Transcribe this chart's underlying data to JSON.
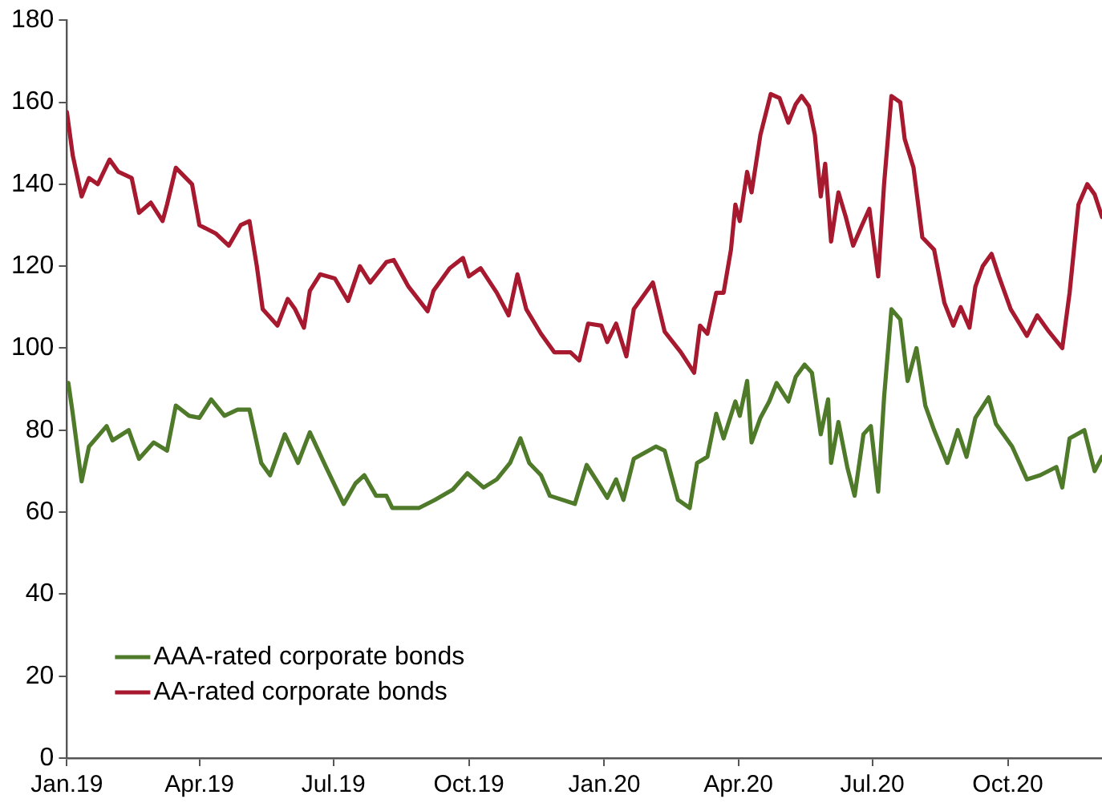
{
  "chart_data": {
    "type": "line",
    "xlim": [
      "2019-01-01",
      "2020-12-04"
    ],
    "xticks": [
      {
        "value": "2019-01-01",
        "label": "Jan.19"
      },
      {
        "value": "2019-04-01",
        "label": "Apr.19"
      },
      {
        "value": "2019-07-01",
        "label": "Jul.19"
      },
      {
        "value": "2019-10-01",
        "label": "Oct.19"
      },
      {
        "value": "2020-01-01",
        "label": "Jan.20"
      },
      {
        "value": "2020-04-01",
        "label": "Apr.20"
      },
      {
        "value": "2020-07-01",
        "label": "Jul.20"
      },
      {
        "value": "2020-10-01",
        "label": "Oct.20"
      }
    ],
    "ylim": [
      0,
      180
    ],
    "yticks": [
      0,
      20,
      40,
      60,
      80,
      100,
      120,
      140,
      160,
      180
    ],
    "grid": false,
    "legend": "bottom left",
    "marker": "none",
    "line_style": "solid",
    "series": [
      {
        "name": "AAA-rated corporate bonds",
        "color": "#4e7a2a",
        "x": [
          "2019-01-02",
          "2019-01-05",
          "2019-01-11",
          "2019-01-16",
          "2019-01-28",
          "2019-02-01",
          "2019-02-12",
          "2019-02-19",
          "2019-03-01",
          "2019-03-10",
          "2019-03-16",
          "2019-03-25",
          "2019-04-01",
          "2019-04-09",
          "2019-04-18",
          "2019-04-27",
          "2019-05-05",
          "2019-05-13",
          "2019-05-19",
          "2019-05-29",
          "2019-06-07",
          "2019-06-15",
          "2019-06-26",
          "2019-07-08",
          "2019-07-16",
          "2019-07-22",
          "2019-07-30",
          "2019-08-06",
          "2019-08-10",
          "2019-08-28",
          "2019-09-08",
          "2019-09-20",
          "2019-09-30",
          "2019-10-11",
          "2019-10-20",
          "2019-10-29",
          "2019-11-05",
          "2019-11-11",
          "2019-11-19",
          "2019-11-25",
          "2019-12-12",
          "2019-12-20",
          "2019-12-28",
          "2020-01-03",
          "2020-01-09",
          "2020-01-14",
          "2020-01-21",
          "2020-02-05",
          "2020-02-11",
          "2020-02-20",
          "2020-02-28",
          "2020-03-04",
          "2020-03-11",
          "2020-03-17",
          "2020-03-22",
          "2020-03-30",
          "2020-04-02",
          "2020-04-07",
          "2020-04-10",
          "2020-04-16",
          "2020-04-22",
          "2020-04-27",
          "2020-05-05",
          "2020-05-10",
          "2020-05-16",
          "2020-05-21",
          "2020-05-27",
          "2020-06-01",
          "2020-06-03",
          "2020-06-08",
          "2020-06-14",
          "2020-06-19",
          "2020-06-25",
          "2020-06-30",
          "2020-07-05",
          "2020-07-09",
          "2020-07-14",
          "2020-07-20",
          "2020-07-25",
          "2020-07-31",
          "2020-08-06",
          "2020-08-12",
          "2020-08-21",
          "2020-08-28",
          "2020-09-03",
          "2020-09-09",
          "2020-09-18",
          "2020-09-23",
          "2020-10-04",
          "2020-10-14",
          "2020-10-23",
          "2020-11-03",
          "2020-11-07",
          "2020-11-12",
          "2020-11-22",
          "2020-11-29",
          "2020-12-04"
        ],
        "values": [
          91.5,
          84,
          67.5,
          76,
          81,
          77.5,
          80,
          73,
          77,
          75,
          86,
          83.5,
          83,
          87.5,
          83.5,
          85,
          85,
          72,
          69,
          79,
          72,
          79.5,
          71,
          62,
          67,
          69,
          64,
          64,
          61,
          61,
          63,
          65.5,
          69.5,
          66,
          68,
          72,
          78,
          72,
          69,
          64,
          62,
          71.5,
          67,
          63.5,
          68,
          63,
          73,
          76,
          75,
          63,
          61,
          72,
          73.5,
          84,
          78,
          87,
          83.5,
          92,
          77,
          83,
          87,
          91.5,
          87,
          93,
          96,
          94,
          79,
          87.5,
          72,
          82,
          71,
          64,
          79,
          81,
          65,
          88,
          109.5,
          107,
          92,
          100,
          86,
          80,
          72,
          80,
          73.5,
          83,
          88,
          81.5,
          76,
          68,
          69,
          71,
          66,
          78,
          80,
          70,
          73.5
        ]
      },
      {
        "name": "AA-rated corporate bonds",
        "color": "#a6192e",
        "x": [
          "2019-01-01",
          "2019-01-05",
          "2019-01-11",
          "2019-01-16",
          "2019-01-22",
          "2019-01-30",
          "2019-02-05",
          "2019-02-14",
          "2019-02-19",
          "2019-02-27",
          "2019-03-07",
          "2019-03-10",
          "2019-03-16",
          "2019-03-27",
          "2019-04-01",
          "2019-04-12",
          "2019-04-21",
          "2019-04-29",
          "2019-05-05",
          "2019-05-10",
          "2019-05-14",
          "2019-05-24",
          "2019-05-31",
          "2019-06-05",
          "2019-06-11",
          "2019-06-15",
          "2019-06-22",
          "2019-07-02",
          "2019-07-11",
          "2019-07-19",
          "2019-07-26",
          "2019-08-06",
          "2019-08-11",
          "2019-08-21",
          "2019-09-03",
          "2019-09-07",
          "2019-09-18",
          "2019-09-27",
          "2019-10-01",
          "2019-10-09",
          "2019-10-20",
          "2019-10-28",
          "2019-11-03",
          "2019-11-09",
          "2019-11-19",
          "2019-11-28",
          "2019-12-09",
          "2019-12-15",
          "2019-12-21",
          "2019-12-30",
          "2020-01-03",
          "2020-01-09",
          "2020-01-16",
          "2020-01-21",
          "2020-02-03",
          "2020-02-11",
          "2020-02-22",
          "2020-03-02",
          "2020-03-06",
          "2020-03-11",
          "2020-03-17",
          "2020-03-22",
          "2020-03-27",
          "2020-03-30",
          "2020-04-02",
          "2020-04-07",
          "2020-04-10",
          "2020-04-16",
          "2020-04-23",
          "2020-04-29",
          "2020-05-05",
          "2020-05-10",
          "2020-05-14",
          "2020-05-19",
          "2020-05-23",
          "2020-05-27",
          "2020-05-30",
          "2020-06-03",
          "2020-06-08",
          "2020-06-13",
          "2020-06-18",
          "2020-06-24",
          "2020-06-29",
          "2020-07-05",
          "2020-07-09",
          "2020-07-14",
          "2020-07-20",
          "2020-07-23",
          "2020-07-29",
          "2020-08-04",
          "2020-08-12",
          "2020-08-19",
          "2020-08-25",
          "2020-08-30",
          "2020-09-05",
          "2020-09-09",
          "2020-09-14",
          "2020-09-20",
          "2020-09-25",
          "2020-10-03",
          "2020-10-14",
          "2020-10-21",
          "2020-10-29",
          "2020-11-07",
          "2020-11-12",
          "2020-11-18",
          "2020-11-24",
          "2020-11-29",
          "2020-12-04"
        ],
        "values": [
          157.6,
          147,
          137,
          141.5,
          140,
          146,
          143,
          141.5,
          133,
          135.5,
          131,
          135,
          144,
          140,
          130,
          128,
          125,
          130,
          131,
          120,
          109.5,
          105.5,
          112,
          109.5,
          105,
          114,
          118,
          117,
          111.5,
          120,
          116,
          121,
          121.5,
          115,
          109,
          114,
          119.5,
          122,
          117.5,
          119.5,
          113.5,
          108,
          118,
          109.5,
          103.5,
          99,
          99,
          97,
          106,
          105.5,
          101.5,
          106,
          98,
          109.5,
          116,
          104,
          99,
          94,
          105.5,
          103.5,
          113.5,
          113.5,
          124,
          135,
          131,
          143,
          138,
          152,
          162,
          161,
          155,
          159.5,
          161.5,
          159,
          152,
          137,
          145,
          126,
          138,
          132,
          125,
          130,
          134,
          117.5,
          140,
          161.5,
          160,
          151,
          144,
          127,
          124,
          111,
          105.5,
          110,
          105,
          115,
          120,
          123,
          117.5,
          109.5,
          103,
          108,
          104,
          100,
          113.5,
          135,
          140,
          137.5,
          132
        ]
      }
    ]
  }
}
